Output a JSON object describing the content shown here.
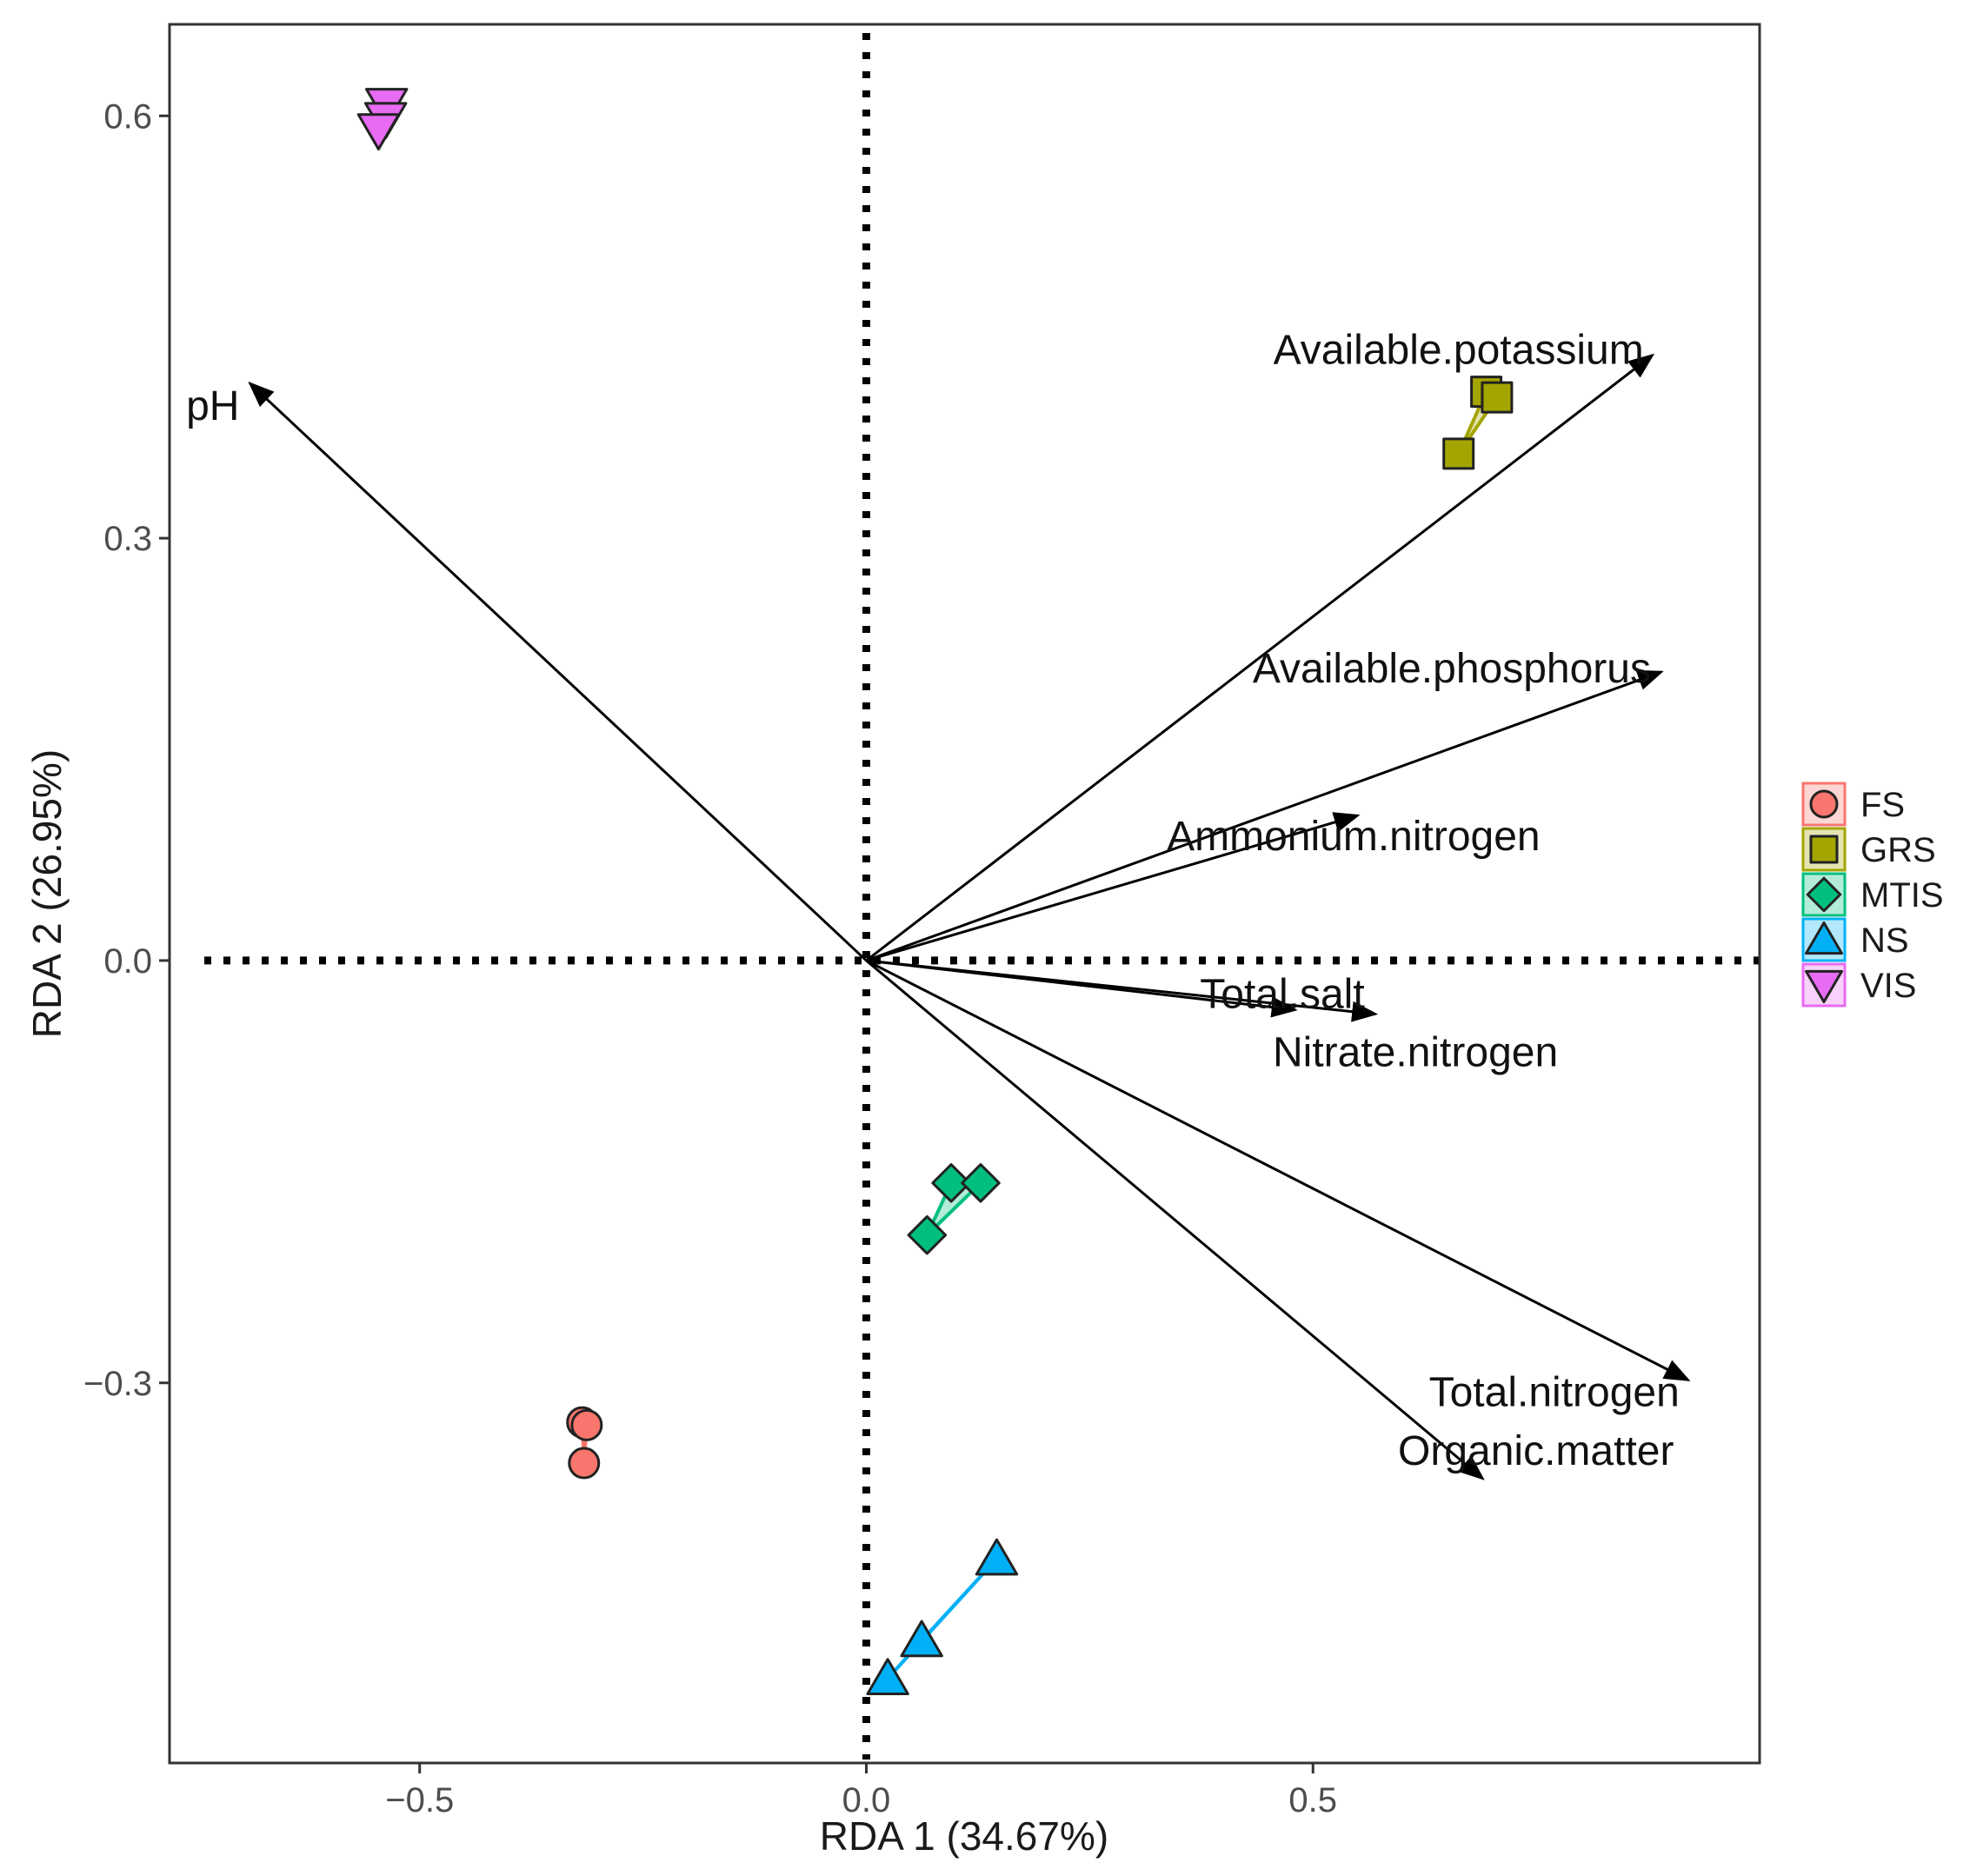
{
  "chart_data": {
    "type": "scatter",
    "subtype": "RDA biplot",
    "xlabel": "RDA 1 (34.67%)",
    "ylabel": "RDA 2 (26.95%)",
    "xlim": [
      -0.78,
      1.0
    ],
    "ylim": [
      -0.57,
      0.665
    ],
    "x_ticks": [
      {
        "value": -0.5,
        "label": "−0.5"
      },
      {
        "value": 0.0,
        "label": "0.0"
      },
      {
        "value": 0.5,
        "label": "0.5"
      }
    ],
    "y_ticks": [
      {
        "value": -0.3,
        "label": "−0.3"
      },
      {
        "value": 0.0,
        "label": "0.0"
      },
      {
        "value": 0.3,
        "label": "0.3"
      },
      {
        "value": 0.6,
        "label": "0.6"
      }
    ],
    "grid": false,
    "reference_lines": {
      "x": 0,
      "y": 0,
      "style": "dotted"
    },
    "legend_position": "right",
    "series": [
      {
        "name": "FS",
        "color": "#F8766D",
        "shape": "circle",
        "points": [
          {
            "x": -0.318,
            "y": -0.328
          },
          {
            "x": -0.313,
            "y": -0.33
          },
          {
            "x": -0.316,
            "y": -0.357
          }
        ]
      },
      {
        "name": "GRS",
        "color": "#A3A500",
        "shape": "square",
        "points": [
          {
            "x": 0.694,
            "y": 0.404
          },
          {
            "x": 0.706,
            "y": 0.4
          },
          {
            "x": 0.663,
            "y": 0.36
          }
        ]
      },
      {
        "name": "MTIS",
        "color": "#00BF7D",
        "shape": "diamond",
        "points": [
          {
            "x": 0.095,
            "y": -0.158
          },
          {
            "x": 0.128,
            "y": -0.158
          },
          {
            "x": 0.068,
            "y": -0.195
          }
        ]
      },
      {
        "name": "NS",
        "color": "#00B0F6",
        "shape": "triangle-up",
        "points": [
          {
            "x": 0.146,
            "y": -0.425
          },
          {
            "x": 0.062,
            "y": -0.483
          },
          {
            "x": 0.024,
            "y": -0.51
          }
        ]
      },
      {
        "name": "VIS",
        "color": "#E76BF3",
        "shape": "triangle-down",
        "points": [
          {
            "x": -0.537,
            "y": 0.608
          },
          {
            "x": -0.538,
            "y": 0.598
          },
          {
            "x": -0.546,
            "y": 0.59
          }
        ]
      }
    ],
    "arrows": [
      {
        "name": "pH",
        "x": -0.69,
        "y": 0.41
      },
      {
        "name": "Available.potassium",
        "x": 0.88,
        "y": 0.43
      },
      {
        "name": "Available.phosphorus",
        "x": 0.89,
        "y": 0.205
      },
      {
        "name": "Ammonium.nitrogen",
        "x": 0.55,
        "y": 0.103
      },
      {
        "name": "Total.salt",
        "x": 0.48,
        "y": -0.035
      },
      {
        "name": "Nitrate.nitrogen",
        "x": 0.57,
        "y": -0.038
      },
      {
        "name": "Total.nitrogen",
        "x": 0.92,
        "y": -0.298
      },
      {
        "name": "Organic.matter",
        "x": 0.69,
        "y": -0.368
      }
    ]
  }
}
